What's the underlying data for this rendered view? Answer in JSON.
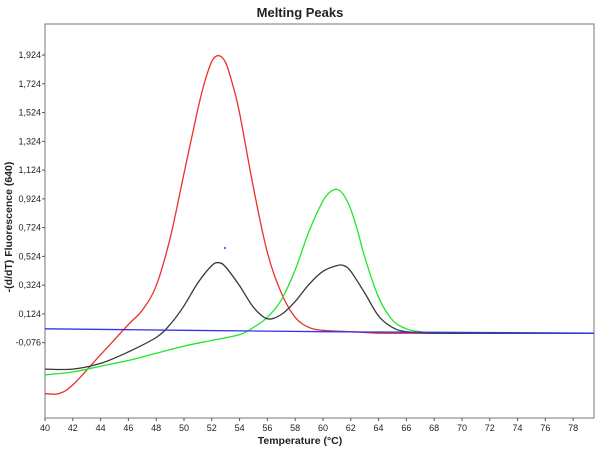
{
  "chart_data": {
    "type": "line",
    "title": "Melting Peaks",
    "xlabel": "Temperature (°C)",
    "ylabel": "-(d/dT) Fluorescence (640)",
    "xlim": [
      40,
      79.5
    ],
    "ylim": [
      -0.6,
      2.14
    ],
    "x_ticks": [
      40,
      42,
      44,
      46,
      48,
      50,
      52,
      54,
      56,
      58,
      60,
      62,
      64,
      66,
      68,
      70,
      72,
      74,
      76,
      78
    ],
    "x_tick_labels": [
      "40",
      "42",
      "44",
      "46",
      "48",
      "50",
      "52",
      "54",
      "56",
      "58",
      "60",
      "62",
      "64",
      "66",
      "68",
      "70",
      "72",
      "74",
      "76",
      "78"
    ],
    "y_ticks": [
      -0.076,
      0.124,
      0.324,
      0.524,
      0.724,
      0.924,
      1.124,
      1.324,
      1.524,
      1.724,
      1.924
    ],
    "y_tick_labels": [
      "-0,076",
      "0,124",
      "0,324",
      "0,524",
      "0,724",
      "0,924",
      "1,124",
      "1,324",
      "1,524",
      "1,724",
      "1,924"
    ],
    "grid": false,
    "series": [
      {
        "color": "#e8312a",
        "x": [
          40.0,
          41.0,
          42.0,
          44.0,
          46.0,
          47.0,
          48.0,
          49.0,
          50.0,
          51.0,
          51.5,
          52.0,
          52.5,
          53.0,
          53.5,
          54.0,
          55.0,
          56.0,
          57.0,
          58.0,
          59.0,
          60.0,
          62.0,
          64.0,
          66.0,
          70.0,
          75.0,
          79.5
        ],
        "y": [
          -0.43,
          -0.43,
          -0.37,
          -0.16,
          0.05,
          0.15,
          0.32,
          0.65,
          1.1,
          1.55,
          1.74,
          1.88,
          1.92,
          1.87,
          1.72,
          1.52,
          1.0,
          0.55,
          0.27,
          0.1,
          0.03,
          0.01,
          0.0,
          -0.01,
          -0.01,
          -0.01,
          -0.01,
          -0.01
        ]
      },
      {
        "color": "#1ee82a",
        "x": [
          40.0,
          42.0,
          44.0,
          46.0,
          48.0,
          50.0,
          52.0,
          54.0,
          55.0,
          56.0,
          57.0,
          58.0,
          59.0,
          60.0,
          60.5,
          61.0,
          61.5,
          62.0,
          62.5,
          63.0,
          64.0,
          65.0,
          66.0,
          67.0,
          68.0,
          70.0,
          75.0,
          79.5
        ],
        "y": [
          -0.3,
          -0.28,
          -0.24,
          -0.2,
          -0.15,
          -0.1,
          -0.06,
          -0.02,
          0.03,
          0.1,
          0.22,
          0.43,
          0.7,
          0.91,
          0.97,
          0.99,
          0.95,
          0.85,
          0.7,
          0.52,
          0.24,
          0.08,
          0.02,
          0.0,
          -0.01,
          -0.01,
          -0.01,
          -0.01
        ]
      },
      {
        "color": "#383838",
        "x": [
          40.0,
          42.0,
          44.0,
          46.0,
          48.0,
          49.0,
          50.0,
          51.0,
          52.0,
          52.5,
          53.0,
          54.0,
          55.0,
          56.0,
          57.0,
          58.0,
          59.0,
          60.0,
          61.0,
          61.5,
          62.0,
          63.0,
          64.0,
          65.0,
          66.0,
          68.0,
          70.0,
          75.0,
          79.5
        ],
        "y": [
          -0.26,
          -0.26,
          -0.22,
          -0.14,
          -0.04,
          0.05,
          0.18,
          0.34,
          0.46,
          0.48,
          0.45,
          0.32,
          0.17,
          0.09,
          0.12,
          0.21,
          0.33,
          0.42,
          0.46,
          0.46,
          0.42,
          0.27,
          0.11,
          0.03,
          0.0,
          -0.01,
          -0.01,
          -0.01,
          -0.01
        ]
      },
      {
        "color": "#3535e8",
        "x": [
          40.0,
          50.0,
          60.0,
          70.0,
          79.5
        ],
        "y": [
          0.02,
          0.01,
          0.0,
          -0.005,
          -0.01
        ]
      }
    ]
  }
}
